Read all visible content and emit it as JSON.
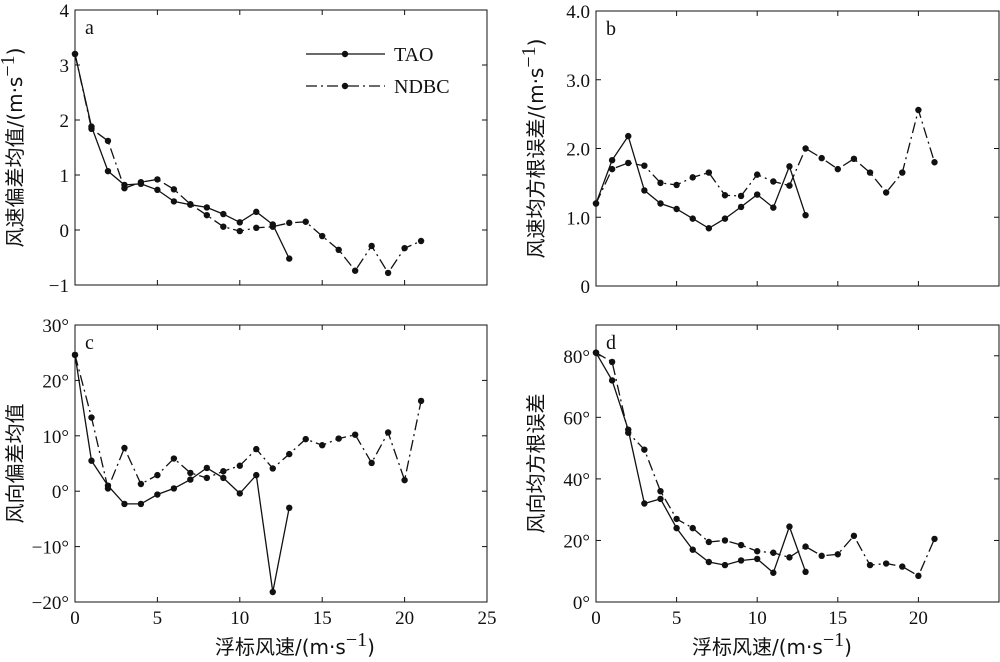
{
  "x_label": "浮标风速/(m·s",
  "x_label_sup": "−1",
  "x_label_close": ")",
  "legend": {
    "items": [
      {
        "name": "TAO",
        "dash": "solid"
      },
      {
        "name": "NDBC",
        "dash": "dashdot"
      }
    ],
    "location": "top-center of panel a"
  },
  "chart_data": [
    {
      "panel": "a",
      "type": "line",
      "ylabel": "风速偏差均值/(m·s",
      "ylabel_unit_sup": "−1",
      "xlim": [
        0,
        25
      ],
      "ylim": [
        -1,
        4
      ],
      "xticks": [
        0,
        5,
        10,
        15,
        20,
        25
      ],
      "xticklabels": [
        "",
        "",
        "",
        "",
        "",
        ""
      ],
      "yticks": [
        -1,
        0,
        1,
        2,
        3,
        4
      ],
      "yticklabels": [
        "−1",
        "0",
        "1",
        "2",
        "3",
        "4"
      ],
      "grid": false,
      "series": [
        {
          "name": "TAO",
          "x": [
            0,
            1,
            2,
            3,
            4,
            5,
            6,
            7,
            8,
            9,
            10,
            11,
            12,
            13
          ],
          "y": [
            3.2,
            1.88,
            1.07,
            0.82,
            0.84,
            0.73,
            0.52,
            0.46,
            0.41,
            0.29,
            0.14,
            0.33,
            0.1,
            -0.52
          ]
        },
        {
          "name": "NDBC",
          "x": [
            0,
            1,
            2,
            3,
            4,
            5,
            6,
            7,
            8,
            9,
            10,
            11,
            12,
            13,
            14,
            15,
            16,
            17,
            18,
            19,
            20,
            21
          ],
          "y": [
            3.2,
            1.84,
            1.62,
            0.76,
            0.87,
            0.92,
            0.74,
            0.47,
            0.27,
            0.06,
            -0.02,
            0.04,
            0.06,
            0.13,
            0.15,
            -0.11,
            -0.36,
            -0.74,
            -0.29,
            -0.78,
            -0.33,
            -0.2
          ]
        }
      ]
    },
    {
      "panel": "b",
      "type": "line",
      "ylabel": "风速均方根误差/(m·s",
      "ylabel_unit_sup": "−1",
      "xlim": [
        0,
        25
      ],
      "ylim": [
        0,
        4
      ],
      "xticks": [
        0,
        5,
        10,
        15,
        20
      ],
      "xticklabels": [
        "",
        "",
        "",
        "",
        ""
      ],
      "yticks": [
        0,
        1,
        2,
        3,
        4
      ],
      "yticklabels": [
        "0",
        "1.0",
        "2.0",
        "3.0",
        "4.0"
      ],
      "grid": false,
      "series": [
        {
          "name": "TAO",
          "x": [
            0,
            1,
            2,
            3,
            4,
            5,
            6,
            7,
            8,
            9,
            10,
            11,
            12,
            13
          ],
          "y": [
            1.2,
            1.83,
            2.18,
            1.39,
            1.2,
            1.12,
            0.98,
            0.84,
            0.98,
            1.15,
            1.33,
            1.14,
            1.74,
            1.03
          ]
        },
        {
          "name": "NDBC",
          "x": [
            0,
            1,
            2,
            3,
            4,
            5,
            6,
            7,
            8,
            9,
            10,
            11,
            12,
            13,
            14,
            15,
            16,
            17,
            18,
            19,
            20,
            21
          ],
          "y": [
            1.2,
            1.7,
            1.79,
            1.75,
            1.5,
            1.47,
            1.58,
            1.65,
            1.32,
            1.31,
            1.62,
            1.52,
            1.46,
            2.0,
            1.86,
            1.7,
            1.85,
            1.65,
            1.36,
            1.65,
            2.56,
            1.8
          ]
        }
      ]
    },
    {
      "panel": "c",
      "type": "line",
      "ylabel": "风向偏差均值",
      "xlabel": "浮标风速/(m·s⁻¹)",
      "xlim": [
        0,
        25
      ],
      "ylim": [
        -20,
        30
      ],
      "xticks": [
        0,
        5,
        10,
        15,
        20,
        25
      ],
      "xticklabels": [
        "0",
        "5",
        "10",
        "15",
        "20",
        "25"
      ],
      "yticks": [
        -20,
        -10,
        0,
        10,
        20,
        30
      ],
      "yticklabels": [
        "−20°",
        "−10°",
        "0°",
        "10°",
        "20°",
        "30°"
      ],
      "grid": false,
      "series": [
        {
          "name": "TAO",
          "x": [
            0,
            1,
            2,
            3,
            4,
            5,
            6,
            7,
            8,
            9,
            10,
            11,
            12,
            13
          ],
          "y": [
            24.6,
            5.5,
            1.0,
            -2.3,
            -2.3,
            -0.6,
            0.5,
            2.1,
            4.2,
            2.4,
            -0.4,
            2.9,
            -18.2,
            -3.0
          ]
        },
        {
          "name": "NDBC",
          "x": [
            0,
            1,
            2,
            3,
            4,
            5,
            6,
            7,
            8,
            9,
            10,
            11,
            12,
            13,
            14,
            15,
            16,
            17,
            18,
            19,
            20,
            21
          ],
          "y": [
            24.6,
            13.3,
            0.5,
            7.8,
            1.3,
            2.9,
            5.9,
            3.3,
            2.4,
            3.6,
            4.6,
            7.6,
            4.1,
            6.7,
            9.4,
            8.3,
            9.5,
            10.2,
            5.1,
            10.6,
            2.0,
            16.3
          ]
        }
      ]
    },
    {
      "panel": "d",
      "type": "line",
      "ylabel": "风向均方根误差",
      "xlabel": "浮标风速/(m·s⁻¹)",
      "xlim": [
        0,
        25
      ],
      "ylim": [
        0,
        90
      ],
      "xticks": [
        0,
        5,
        10,
        15,
        20
      ],
      "xticklabels": [
        "0",
        "5",
        "10",
        "15",
        "20"
      ],
      "yticks": [
        0,
        20,
        40,
        60,
        80
      ],
      "yticklabels": [
        "0°",
        "20°",
        "40°",
        "60°",
        "80°"
      ],
      "grid": false,
      "series": [
        {
          "name": "TAO",
          "x": [
            0,
            1,
            2,
            3,
            4,
            5,
            6,
            7,
            8,
            9,
            10,
            11,
            12,
            13
          ],
          "y": [
            81,
            72,
            56,
            32,
            33.5,
            24,
            17,
            13,
            12,
            13.5,
            14,
            9.5,
            24.5,
            9.8
          ]
        },
        {
          "name": "NDBC",
          "x": [
            0,
            1,
            2,
            3,
            4,
            5,
            6,
            7,
            8,
            9,
            10,
            11,
            12,
            13,
            14,
            15,
            16,
            17,
            18,
            19,
            20,
            21
          ],
          "y": [
            81,
            78,
            55,
            49.5,
            36,
            27,
            24,
            19.5,
            20,
            18.5,
            16.5,
            16,
            14.5,
            18,
            15,
            15.5,
            21.5,
            12,
            12.5,
            11.5,
            8.5,
            20.5
          ]
        }
      ]
    }
  ]
}
